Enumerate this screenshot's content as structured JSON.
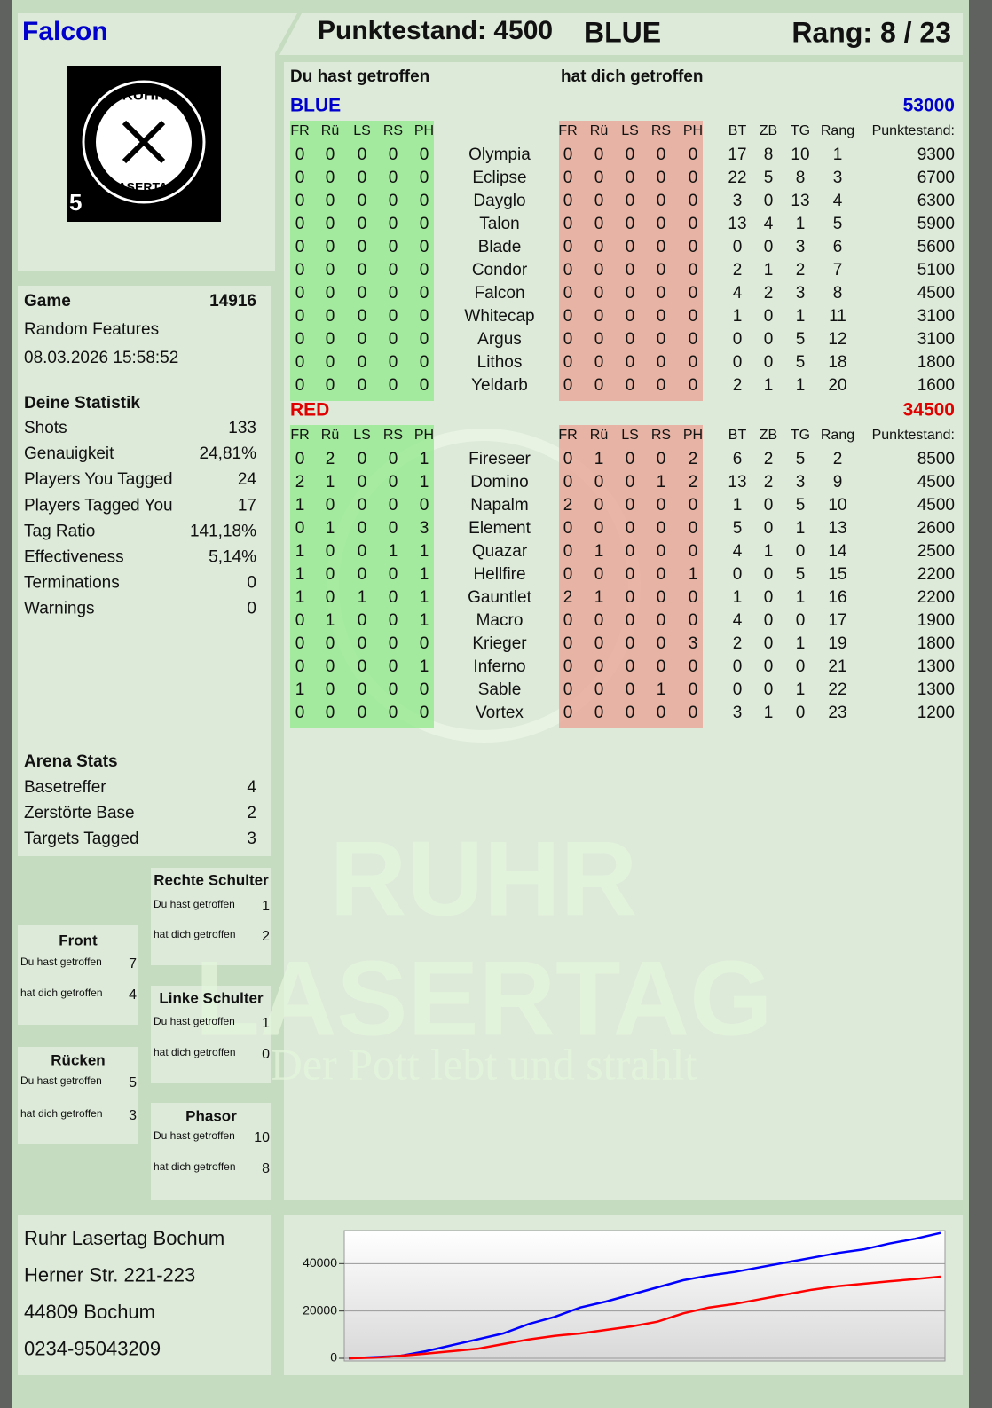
{
  "header": {
    "player": "Falcon",
    "score": "Punktestand: 4500",
    "team": "BLUE",
    "rank": "Rang: 8 / 23"
  },
  "logo": {
    "top": "RUHR",
    "bottom": "LASERTAG",
    "number": "5"
  },
  "game": {
    "label": "Game",
    "id": "14916",
    "mode": "Random Features",
    "date": "08.03.2026 15:58:52"
  },
  "statistics": {
    "title": "Deine Statistik",
    "rows": [
      [
        "Shots",
        "133"
      ],
      [
        "Genauigkeit",
        "24,81%"
      ],
      [
        "Players You Tagged",
        "24"
      ],
      [
        "Players Tagged You",
        "17"
      ],
      [
        "Tag Ratio",
        "141,18%"
      ],
      [
        "Effectiveness",
        "5,14%"
      ],
      [
        "Terminations",
        "0"
      ],
      [
        "Warnings",
        "0"
      ]
    ]
  },
  "arena": {
    "title": "Arena Stats",
    "rows": [
      [
        "Basetreffer",
        "4"
      ],
      [
        "Zerstörte Base",
        "2"
      ],
      [
        "Targets Tagged",
        "3"
      ]
    ]
  },
  "zones": [
    {
      "title": "Rechte Schulter",
      "rows": [
        [
          "Du hast getroffen",
          "1"
        ],
        [
          "hat dich getroffen",
          "2"
        ]
      ]
    },
    {
      "title": "Front",
      "rows": [
        [
          "Du hast getroffen",
          "7"
        ],
        [
          "hat dich getroffen",
          "4"
        ]
      ]
    },
    {
      "title": "Linke Schulter",
      "rows": [
        [
          "Du hast getroffen",
          "1"
        ],
        [
          "hat dich getroffen",
          "0"
        ]
      ]
    },
    {
      "title": "Rücken",
      "rows": [
        [
          "Du hast getroffen",
          "5"
        ],
        [
          "hat dich getroffen",
          "3"
        ]
      ]
    },
    {
      "title": "Phasor",
      "rows": [
        [
          "Du hast getroffen",
          "10"
        ],
        [
          "hat dich getroffen",
          "8"
        ]
      ]
    }
  ],
  "address": [
    "Ruhr Lasertag Bochum",
    "Herner Str. 221-223",
    "44809 Bochum",
    "0234-95043209"
  ],
  "watermark": {
    "line1": "RUHR",
    "line2": "LASERTAG",
    "tagline": "Der Pott lebt und strahlt"
  },
  "scoreboard": {
    "you_hit": "Du hast getroffen",
    "hit_you": "hat dich getroffen",
    "hit_columns": [
      "FR",
      "Rü",
      "LS",
      "RS",
      "PH"
    ],
    "stat_columns": [
      "BT",
      "ZB",
      "TG",
      "Rang",
      "Punktestand:"
    ],
    "teams": [
      {
        "name": "BLUE",
        "total": 53000,
        "color": "#0000cc",
        "rows": [
          {
            "name": "Olympia",
            "hit": [
              0,
              0,
              0,
              0,
              0
            ],
            "hit_by": [
              0,
              0,
              0,
              0,
              0
            ],
            "stats": [
              17,
              8,
              10,
              1,
              9300
            ]
          },
          {
            "name": "Eclipse",
            "hit": [
              0,
              0,
              0,
              0,
              0
            ],
            "hit_by": [
              0,
              0,
              0,
              0,
              0
            ],
            "stats": [
              22,
              5,
              8,
              3,
              6700
            ]
          },
          {
            "name": "Dayglo",
            "hit": [
              0,
              0,
              0,
              0,
              0
            ],
            "hit_by": [
              0,
              0,
              0,
              0,
              0
            ],
            "stats": [
              3,
              0,
              13,
              4,
              6300
            ]
          },
          {
            "name": "Talon",
            "hit": [
              0,
              0,
              0,
              0,
              0
            ],
            "hit_by": [
              0,
              0,
              0,
              0,
              0
            ],
            "stats": [
              13,
              4,
              1,
              5,
              5900
            ]
          },
          {
            "name": "Blade",
            "hit": [
              0,
              0,
              0,
              0,
              0
            ],
            "hit_by": [
              0,
              0,
              0,
              0,
              0
            ],
            "stats": [
              0,
              0,
              3,
              6,
              5600
            ]
          },
          {
            "name": "Condor",
            "hit": [
              0,
              0,
              0,
              0,
              0
            ],
            "hit_by": [
              0,
              0,
              0,
              0,
              0
            ],
            "stats": [
              2,
              1,
              2,
              7,
              5100
            ]
          },
          {
            "name": "Falcon",
            "hit": [
              0,
              0,
              0,
              0,
              0
            ],
            "hit_by": [
              0,
              0,
              0,
              0,
              0
            ],
            "stats": [
              4,
              2,
              3,
              8,
              4500
            ]
          },
          {
            "name": "Whitecap",
            "hit": [
              0,
              0,
              0,
              0,
              0
            ],
            "hit_by": [
              0,
              0,
              0,
              0,
              0
            ],
            "stats": [
              1,
              0,
              1,
              11,
              3100
            ]
          },
          {
            "name": "Argus",
            "hit": [
              0,
              0,
              0,
              0,
              0
            ],
            "hit_by": [
              0,
              0,
              0,
              0,
              0
            ],
            "stats": [
              0,
              0,
              5,
              12,
              3100
            ]
          },
          {
            "name": "Lithos",
            "hit": [
              0,
              0,
              0,
              0,
              0
            ],
            "hit_by": [
              0,
              0,
              0,
              0,
              0
            ],
            "stats": [
              0,
              0,
              5,
              18,
              1800
            ]
          },
          {
            "name": "Yeldarb",
            "hit": [
              0,
              0,
              0,
              0,
              0
            ],
            "hit_by": [
              0,
              0,
              0,
              0,
              0
            ],
            "stats": [
              2,
              1,
              1,
              20,
              1600
            ]
          }
        ]
      },
      {
        "name": "RED",
        "total": 34500,
        "color": "#e00000",
        "rows": [
          {
            "name": "Fireseer",
            "hit": [
              0,
              2,
              0,
              0,
              1
            ],
            "hit_by": [
              0,
              1,
              0,
              0,
              2
            ],
            "stats": [
              6,
              2,
              5,
              2,
              8500
            ]
          },
          {
            "name": "Domino",
            "hit": [
              2,
              1,
              0,
              0,
              1
            ],
            "hit_by": [
              0,
              0,
              0,
              1,
              2
            ],
            "stats": [
              13,
              2,
              3,
              9,
              4500
            ]
          },
          {
            "name": "Napalm",
            "hit": [
              1,
              0,
              0,
              0,
              0
            ],
            "hit_by": [
              2,
              0,
              0,
              0,
              0
            ],
            "stats": [
              1,
              0,
              5,
              10,
              4500
            ]
          },
          {
            "name": "Element",
            "hit": [
              0,
              1,
              0,
              0,
              3
            ],
            "hit_by": [
              0,
              0,
              0,
              0,
              0
            ],
            "stats": [
              5,
              0,
              1,
              13,
              2600
            ]
          },
          {
            "name": "Quazar",
            "hit": [
              1,
              0,
              0,
              1,
              1
            ],
            "hit_by": [
              0,
              1,
              0,
              0,
              0
            ],
            "stats": [
              4,
              1,
              0,
              14,
              2500
            ]
          },
          {
            "name": "Hellfire",
            "hit": [
              1,
              0,
              0,
              0,
              1
            ],
            "hit_by": [
              0,
              0,
              0,
              0,
              1
            ],
            "stats": [
              0,
              0,
              5,
              15,
              2200
            ]
          },
          {
            "name": "Gauntlet",
            "hit": [
              1,
              0,
              1,
              0,
              1
            ],
            "hit_by": [
              2,
              1,
              0,
              0,
              0
            ],
            "stats": [
              1,
              0,
              1,
              16,
              2200
            ]
          },
          {
            "name": "Macro",
            "hit": [
              0,
              1,
              0,
              0,
              1
            ],
            "hit_by": [
              0,
              0,
              0,
              0,
              0
            ],
            "stats": [
              4,
              0,
              0,
              17,
              1900
            ]
          },
          {
            "name": "Krieger",
            "hit": [
              0,
              0,
              0,
              0,
              0
            ],
            "hit_by": [
              0,
              0,
              0,
              0,
              3
            ],
            "stats": [
              2,
              0,
              1,
              19,
              1800
            ]
          },
          {
            "name": "Inferno",
            "hit": [
              0,
              0,
              0,
              0,
              1
            ],
            "hit_by": [
              0,
              0,
              0,
              0,
              0
            ],
            "stats": [
              0,
              0,
              0,
              21,
              1300
            ]
          },
          {
            "name": "Sable",
            "hit": [
              1,
              0,
              0,
              0,
              0
            ],
            "hit_by": [
              0,
              0,
              0,
              1,
              0
            ],
            "stats": [
              0,
              0,
              1,
              22,
              1300
            ]
          },
          {
            "name": "Vortex",
            "hit": [
              0,
              0,
              0,
              0,
              0
            ],
            "hit_by": [
              0,
              0,
              0,
              0,
              0
            ],
            "stats": [
              3,
              1,
              0,
              23,
              1200
            ]
          }
        ]
      }
    ]
  },
  "chart_data": {
    "type": "line",
    "ylim": [
      0,
      54000
    ],
    "yticks": [
      0,
      20000,
      40000
    ],
    "grid": true,
    "series": [
      {
        "color": "#0000ff",
        "values": [
          0,
          500,
          1000,
          3000,
          5500,
          8000,
          10500,
          14500,
          17500,
          21500,
          24000,
          27000,
          30000,
          33000,
          35000,
          36500,
          38500,
          40500,
          42500,
          44500,
          46000,
          48500,
          50500,
          53000
        ]
      },
      {
        "color": "#ff0000",
        "values": [
          0,
          300,
          1000,
          2000,
          3000,
          4000,
          6000,
          8000,
          9500,
          10500,
          12000,
          13500,
          15500,
          19000,
          21500,
          23000,
          25000,
          27000,
          29000,
          30500,
          31500,
          32500,
          33500,
          34500
        ]
      }
    ]
  }
}
